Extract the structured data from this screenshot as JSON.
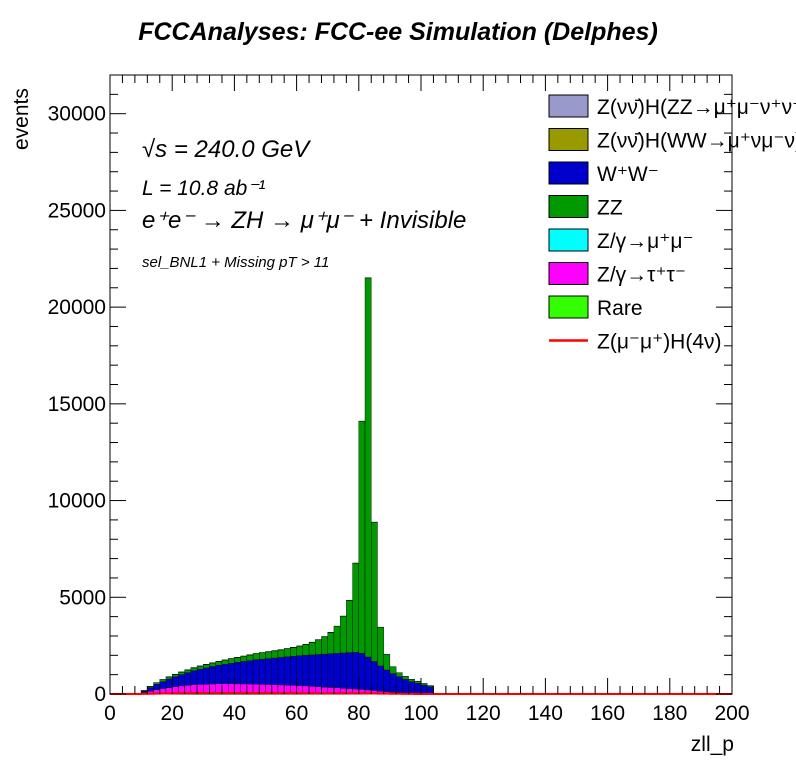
{
  "chart_data": {
    "type": "bar",
    "stacked": true,
    "title": "FCCAnalyses: FCC-ee Simulation (Delphes)",
    "xlabel": "zll_p",
    "ylabel": "events",
    "xlim": [
      0,
      200
    ],
    "ylim": [
      0,
      32000
    ],
    "xticks": [
      "0",
      "20",
      "40",
      "60",
      "80",
      "100",
      "120",
      "140",
      "160",
      "180",
      "200"
    ],
    "yticks": [
      "0",
      "5000",
      "10000",
      "15000",
      "20000",
      "25000",
      "30000"
    ],
    "grid": false,
    "legend_position": "top-right",
    "annotations": {
      "energy": "√s = 240.0 GeV",
      "lumi": "L = 10.8 ab⁻¹",
      "process": "e⁺e⁻ → ZH → μ⁺μ⁻ + Invisible",
      "selection": "sel_BNL1 + Missing pT > 11"
    },
    "x": [
      11,
      13,
      15,
      17,
      19,
      21,
      23,
      25,
      27,
      29,
      31,
      33,
      35,
      37,
      39,
      41,
      43,
      45,
      47,
      49,
      51,
      53,
      55,
      57,
      59,
      61,
      63,
      65,
      67,
      69,
      71,
      73,
      75,
      77,
      79,
      81,
      83,
      85,
      87,
      89,
      91,
      93,
      95,
      97,
      99,
      101,
      103
    ],
    "series": [
      {
        "name": "Z/γ→τ⁺τ⁻",
        "color": "#ff00ff",
        "values": [
          80,
          150,
          220,
          280,
          330,
          380,
          420,
          450,
          480,
          500,
          510,
          520,
          530,
          530,
          530,
          525,
          520,
          515,
          510,
          500,
          490,
          480,
          470,
          460,
          450,
          435,
          420,
          400,
          380,
          360,
          340,
          320,
          300,
          280,
          260,
          240,
          210,
          180,
          150,
          120,
          95,
          75,
          55,
          40,
          30,
          20,
          12
        ]
      },
      {
        "name": "W⁺W⁻",
        "color": "#0000cc",
        "values": [
          70,
          180,
          280,
          360,
          440,
          510,
          580,
          650,
          720,
          780,
          840,
          900,
          960,
          1010,
          1060,
          1110,
          1160,
          1210,
          1260,
          1300,
          1340,
          1380,
          1420,
          1460,
          1500,
          1540,
          1580,
          1620,
          1660,
          1700,
          1740,
          1780,
          1820,
          1860,
          1900,
          1860,
          1700,
          1500,
          1300,
          1120,
          960,
          820,
          700,
          600,
          520,
          440,
          360
        ]
      },
      {
        "name": "ZZ",
        "color": "#009900",
        "values": [
          30,
          60,
          80,
          100,
          110,
          120,
          130,
          140,
          150,
          160,
          170,
          180,
          190,
          210,
          230,
          250,
          270,
          290,
          310,
          330,
          350,
          370,
          390,
          420,
          450,
          500,
          560,
          650,
          760,
          900,
          1100,
          1400,
          1900,
          2700,
          4600,
          12000,
          19600,
          7200,
          2000,
          800,
          350,
          200,
          150,
          120,
          100,
          80,
          60
        ]
      },
      {
        "name": "Rare",
        "color": "#33ff00",
        "values": [
          5,
          8,
          10,
          12,
          14,
          15,
          16,
          16,
          17,
          17,
          17,
          17,
          17,
          17,
          17,
          17,
          17,
          17,
          17,
          16,
          16,
          16,
          15,
          15,
          15,
          14,
          14,
          14,
          13,
          13,
          13,
          12,
          12,
          12,
          12,
          11,
          10,
          9,
          8,
          7,
          6,
          5,
          4,
          3,
          3,
          2,
          2
        ]
      },
      {
        "name": "Z(μ⁻μ⁺)H(4ν)",
        "color": "#ff0000",
        "style": "line",
        "values": [
          5,
          12,
          20,
          28,
          34,
          40,
          45,
          48,
          50,
          52,
          52,
          53,
          53,
          53,
          52,
          52,
          51,
          50,
          50,
          49,
          48,
          47,
          46,
          45,
          44,
          43,
          42,
          41,
          40,
          39,
          38,
          37,
          36,
          35,
          34,
          33,
          30,
          26,
          22,
          18,
          14,
          10,
          7,
          5,
          3,
          2,
          1
        ]
      }
    ],
    "legend": [
      {
        "label": "Z(νν̄)H(ZZ→μ⁺μ⁻ν⁺ν⁻)",
        "color": "#9999cc",
        "type": "box"
      },
      {
        "label": "Z(νν̄)H(WW→μ⁺νμ⁻ν)",
        "color": "#999900",
        "type": "box"
      },
      {
        "label": "W⁺W⁻",
        "color": "#0000cc",
        "type": "box"
      },
      {
        "label": "ZZ",
        "color": "#009900",
        "type": "box"
      },
      {
        "label": "Z/γ→μ⁺μ⁻",
        "color": "#00ffff",
        "type": "box"
      },
      {
        "label": "Z/γ→τ⁺τ⁻",
        "color": "#ff00ff",
        "type": "box"
      },
      {
        "label": "Rare",
        "color": "#33ff00",
        "type": "box"
      },
      {
        "label": "Z(μ⁻μ⁺)H(4ν)",
        "color": "#ff0000",
        "type": "line"
      }
    ]
  }
}
